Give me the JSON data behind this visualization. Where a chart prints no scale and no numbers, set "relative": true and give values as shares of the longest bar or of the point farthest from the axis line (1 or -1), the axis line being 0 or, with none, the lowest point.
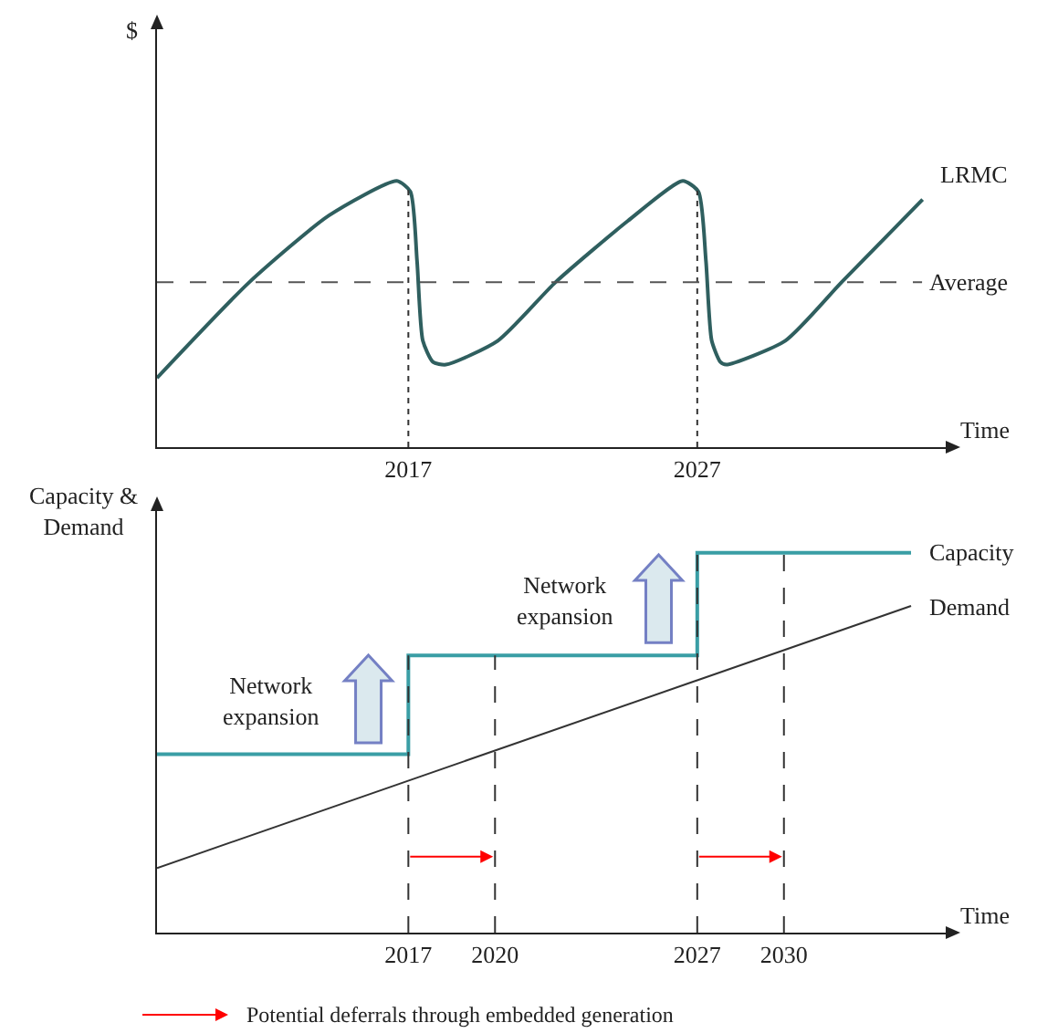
{
  "chart_data": [
    {
      "type": "line",
      "ylabel": "$",
      "xlabel": "Time",
      "relative": true,
      "xlim": [
        2008.3,
        2035.6
      ],
      "xticks": [
        2017,
        2027
      ],
      "tick_labels": "x",
      "line_style": "solid",
      "series": [
        {
          "name": "LRMC",
          "color": "#2f5f5f",
          "x": [
            2008.3,
            2011.5,
            2014.25,
            2016.6,
            2017.07,
            2017.3,
            2017.5,
            2017.85,
            2018.3,
            2020.1,
            2022.1,
            2024.6,
            2026.5,
            2027.04,
            2027.3,
            2027.5,
            2027.8,
            2028.0,
            2030.05,
            2032.0,
            2034.8
          ],
          "values": [
            0.26,
            0.62,
            0.87,
            1.0,
            0.96,
            0.7,
            0.4,
            0.32,
            0.31,
            0.4,
            0.62,
            0.85,
            1.0,
            0.96,
            0.7,
            0.4,
            0.32,
            0.31,
            0.4,
            0.62,
            0.93
          ]
        }
      ],
      "ref_lines": [
        {
          "axis": "x",
          "value": 2017,
          "line_style": "dotted",
          "color": "#333333"
        },
        {
          "axis": "x",
          "value": 2027,
          "line_style": "dotted",
          "color": "#333333"
        },
        {
          "axis": "y",
          "value": 0.62,
          "label": "Average",
          "line_style": "dashed",
          "color": "#555555"
        }
      ]
    },
    {
      "type": "line",
      "ylabel": "Capacity &\nDemand",
      "xlabel": "Time",
      "relative": true,
      "xlim": [
        2008.3,
        2035.6
      ],
      "xticks": [
        2017,
        2020,
        2027,
        2030
      ],
      "tick_labels": "x",
      "series": [
        {
          "name": "Capacity",
          "type": "step",
          "color": "#3a9ea5",
          "x": [
            2008.3,
            2017,
            2027,
            2034.4
          ],
          "values": [
            0.47,
            0.73,
            1,
            1
          ]
        },
        {
          "name": "Demand",
          "color": "#333333",
          "x": [
            2008.3,
            2034.4
          ],
          "values": [
            0.17,
            0.86
          ]
        }
      ],
      "ref_lines": [
        {
          "axis": "x",
          "value": 2017,
          "line_style": "dashed",
          "color": "#333333"
        },
        {
          "axis": "x",
          "value": 2020,
          "line_style": "dashed",
          "color": "#333333"
        },
        {
          "axis": "x",
          "value": 2027,
          "line_style": "dashed",
          "color": "#333333"
        },
        {
          "axis": "x",
          "value": 2030,
          "line_style": "dashed",
          "color": "#333333"
        }
      ],
      "annotations": [
        "Network\nexpansion",
        "Network\nexpansion",
        "Potential deferrals through embedded generation"
      ]
    }
  ]
}
